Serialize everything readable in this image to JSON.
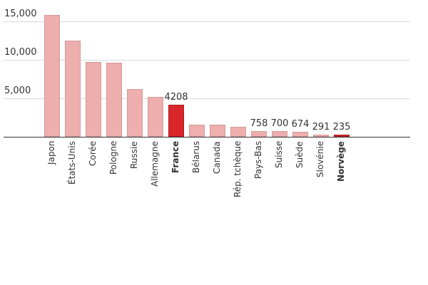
{
  "chart_data": {
    "type": "bar",
    "title": "",
    "xlabel": "",
    "ylabel": "",
    "ylim": [
      0,
      17000
    ],
    "yticks": [
      5000,
      10000,
      15000
    ],
    "ytick_labels": [
      "5,000",
      "10,000",
      "15,000"
    ],
    "grid": true,
    "categories": [
      "Japon",
      "États-Unis",
      "Corée",
      "Pologne",
      "Russie",
      "Allemagne",
      "France",
      "Bélarus",
      "Canada",
      "Rép. tchèque",
      "Pays-Bas",
      "Suisse",
      "Suède",
      "Slovénie",
      "Norvège"
    ],
    "values": [
      15830,
      12500,
      9720,
      9630,
      6200,
      5190,
      4208,
      1570,
      1570,
      1300,
      758,
      700,
      674,
      291,
      235
    ],
    "highlighted": [
      "France",
      "Norvège"
    ],
    "data_labels": {
      "France": "4208",
      "Pays-Bas": "758",
      "Suisse": "700",
      "Suède": "674",
      "Slovénie": "291",
      "Norvège": "235"
    },
    "colors": {
      "default": "#eeaeae",
      "highlight": "#d9262a"
    }
  }
}
